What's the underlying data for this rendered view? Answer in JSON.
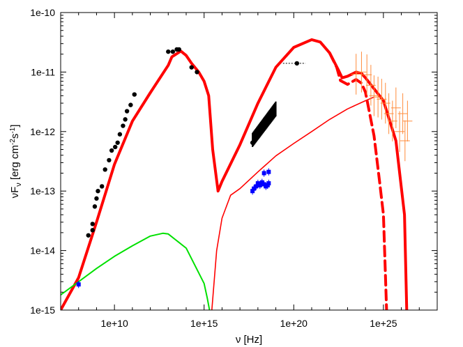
{
  "chart_data": {
    "type": "scatter",
    "title": "",
    "xlabel": "ν [Hz]",
    "ylabel_main": "νF",
    "ylabel_sub": "ν",
    "ylabel_unit_open": " [erg cm",
    "ylabel_unit_exp1": "-2",
    "ylabel_unit_mid": "s",
    "ylabel_unit_exp2": "-1",
    "ylabel_unit_close": "]",
    "x_scale": "log",
    "y_scale": "log",
    "xlim": [
      10000000.0,
      1e+28
    ],
    "ylim": [
      1e-15,
      1e-10
    ],
    "xticks": [
      {
        "value": 10000000000.0,
        "label": "1e+10"
      },
      {
        "value": 1000000000000000.0,
        "label": "1e+15"
      },
      {
        "value": 1e+20,
        "label": "1e+20"
      },
      {
        "value": 1e+25,
        "label": "1e+25"
      }
    ],
    "yticks": [
      {
        "value": 1e-15,
        "label": "1e-15"
      },
      {
        "value": 1e-14,
        "label": "1e-14"
      },
      {
        "value": 1e-13,
        "label": "1e-13"
      },
      {
        "value": 1e-12,
        "label": "1e-12"
      },
      {
        "value": 1e-11,
        "label": "1e-11"
      },
      {
        "value": 1e-10,
        "label": "1e-10"
      }
    ],
    "grid": false,
    "legend": "none",
    "colors": {
      "model_total": "#ff0000",
      "model_component": "#ff0000",
      "model_green": "#00e000",
      "data_black": "#000000",
      "data_blue": "#0000ff",
      "data_orange": "#ff8c3c"
    },
    "series": [
      {
        "kind": "line",
        "style": "thick-solid",
        "points": [
          [
            10000000.0,
            1e-15
          ],
          [
            100000000.0,
            3.5e-15
          ],
          [
            1000000000.0,
            3e-14
          ],
          [
            10000000000.0,
            2.8e-13
          ],
          [
            100000000000.0,
            1.5e-12
          ],
          [
            1000000000000.0,
            4.5e-12
          ],
          [
            10000000000000.0,
            1.3e-11
          ],
          [
            16000000000000.0,
            1.8e-11
          ],
          [
            50000000000000.0,
            2.25e-11
          ],
          [
            100000000000000.0,
            1.9e-11
          ],
          [
            200000000000000.0,
            1.4e-11
          ],
          [
            500000000000000.0,
            1e-11
          ],
          [
            1000000000000000.0,
            7e-12
          ],
          [
            1800000000000000.0,
            4e-12
          ],
          [
            3000000000000000.0,
            5e-13
          ],
          [
            6000000000000000.0,
            1e-13
          ],
          [
            1e+16,
            1.45e-13
          ],
          [
            1e+17,
            6e-13
          ],
          [
            1e+18,
            3e-12
          ],
          [
            1e+19,
            1.2e-11
          ],
          [
            1e+20,
            2.6e-11
          ],
          [
            1e+21,
            3.5e-11
          ],
          [
            3e+21,
            3.2e-11
          ],
          [
            1e+22,
            2.1e-11
          ],
          [
            3e+22,
            1.1e-11
          ],
          [
            5e+22,
            8e-12
          ],
          [
            1e+23,
            8.5e-12
          ],
          [
            3e+23,
            1e-11
          ],
          [
            6e+23,
            9.5e-12
          ],
          [
            1e+24,
            8e-12
          ],
          [
            1e+25,
            3.3e-12
          ],
          [
            5e+25,
            7e-13
          ],
          [
            9e+25,
            1.5e-13
          ],
          [
            1.5e+26,
            4e-14
          ],
          [
            2e+26,
            1e-15
          ]
        ]
      },
      {
        "kind": "line",
        "style": "thick-dashed",
        "points": [
          [
            1e+22,
            2.1e-11
          ],
          [
            2.5e+22,
            1.2e-11
          ],
          [
            4e+22,
            7.2e-12
          ],
          [
            1e+23,
            6.2e-12
          ],
          [
            2e+23,
            7e-12
          ],
          [
            3e+23,
            7.5e-12
          ],
          [
            6e+23,
            6.5e-12
          ],
          [
            1e+24,
            4.6e-12
          ],
          [
            3e+24,
            8.5e-13
          ],
          [
            6e+24,
            1.5e-13
          ],
          [
            1e+25,
            4e-14
          ],
          [
            1.5e+25,
            1e-15
          ]
        ]
      },
      {
        "kind": "line",
        "style": "thin-solid",
        "points": [
          [
            2700000000000000.0,
            1e-15
          ],
          [
            5000000000000000.0,
            1e-14
          ],
          [
            1e+16,
            3.5e-14
          ],
          [
            3e+16,
            8.5e-14
          ],
          [
            1e+17,
            1.1e-13
          ],
          [
            1e+18,
            2.1e-13
          ],
          [
            1e+19,
            3.9e-13
          ],
          [
            1e+20,
            6.3e-13
          ],
          [
            1e+21,
            1e-12
          ],
          [
            1e+22,
            1.6e-12
          ],
          [
            1e+23,
            2.4e-12
          ],
          [
            1e+24,
            3.3e-12
          ],
          [
            3e+24,
            3.8e-12
          ]
        ]
      },
      {
        "kind": "line",
        "style": "green",
        "points": [
          [
            10000000.0,
            1.8e-15
          ],
          [
            100000000.0,
            3e-15
          ],
          [
            1000000000.0,
            5e-15
          ],
          [
            10000000000.0,
            8e-15
          ],
          [
            100000000000.0,
            1.2e-14
          ],
          [
            1000000000000.0,
            1.75e-14
          ],
          [
            5000000000000.0,
            1.95e-14
          ],
          [
            10000000000000.0,
            1.9e-14
          ],
          [
            100000000000000.0,
            1.1e-14
          ],
          [
            1000000000000000.0,
            2.8e-15
          ],
          [
            1500000000000000.0,
            1.6e-15
          ],
          [
            2000000000000000.0,
            1e-15
          ]
        ]
      }
    ],
    "black_points": [
      [
        350000000.0,
        1.8e-14
      ],
      [
        600000000.0,
        2.2e-14
      ],
      [
        600000000.0,
        2.8e-14
      ],
      [
        800000000.0,
        5.5e-14
      ],
      [
        1000000000.0,
        7.5e-14
      ],
      [
        1200000000.0,
        1e-13
      ],
      [
        2000000000.0,
        1.2e-13
      ],
      [
        3000000000.0,
        2.3e-13
      ],
      [
        5000000000.0,
        3.3e-13
      ],
      [
        7000000000.0,
        4.8e-13
      ],
      [
        11000000000.0,
        5.5e-13
      ],
      [
        15000000000.0,
        6.5e-13
      ],
      [
        20000000000.0,
        9e-13
      ],
      [
        30000000000.0,
        1.25e-12
      ],
      [
        40000000000.0,
        1.6e-12
      ],
      [
        50000000000.0,
        2.2e-12
      ],
      [
        80000000000.0,
        2.8e-12
      ],
      [
        130000000000.0,
        4.2e-12
      ],
      [
        10000000000000.0,
        2.2e-11
      ],
      [
        18000000000000.0,
        2.2e-11
      ],
      [
        30000000000000.0,
        2.4e-11
      ],
      [
        40000000000000.0,
        2.4e-11
      ],
      [
        200000000000000.0,
        1.2e-11
      ],
      [
        400000000000000.0,
        1e-11
      ],
      [
        5e+17,
        6.5e-13
      ],
      [
        1.5e+20,
        1.4e-11
      ]
    ],
    "black_band": {
      "x_start": 5e+17,
      "x_end": 1e+19,
      "y_start_low": 5.5e-13,
      "y_start_high": 9.5e-13,
      "y_end_low": 1.8e-12,
      "y_end_high": 3.2e-12
    },
    "blue_points": [
      [
        5e+17,
        1e-13
      ],
      [
        6e+17,
        1.1e-13
      ],
      [
        8e+17,
        1.2e-13
      ],
      [
        1e+18,
        1.35e-13
      ],
      [
        1.3e+18,
        1.25e-13
      ],
      [
        1.7e+18,
        1.4e-13
      ],
      [
        2.2e+18,
        1.3e-13
      ],
      [
        2.8e+18,
        1.2e-13
      ],
      [
        3.5e+18,
        1.25e-13
      ],
      [
        4e+18,
        1.35e-13
      ],
      [
        2.2e+18,
        2e-13
      ],
      [
        4e+18,
        2.1e-13
      ],
      [
        100000000.0,
        2.7e-15
      ]
    ],
    "orange_points": [
      [
        3e+23,
        9.2e-12
      ],
      [
        6e+23,
        1e-11
      ],
      [
        1.2e+24,
        9e-12
      ],
      [
        2e+24,
        6e-12
      ],
      [
        3e+24,
        4e-12
      ],
      [
        5e+24,
        3.8e-12
      ],
      [
        8e+24,
        3.5e-12
      ],
      [
        1.3e+25,
        3e-12
      ],
      [
        2e+25,
        2e-12
      ],
      [
        3.2e+25,
        1.5e-12
      ],
      [
        5e+25,
        2.5e-12
      ],
      [
        8e+25,
        1e-12
      ],
      [
        1.2e+26,
        2e-12
      ],
      [
        1.6e+26,
        7e-13
      ],
      [
        2.2e+26,
        1.5e-12
      ]
    ]
  }
}
